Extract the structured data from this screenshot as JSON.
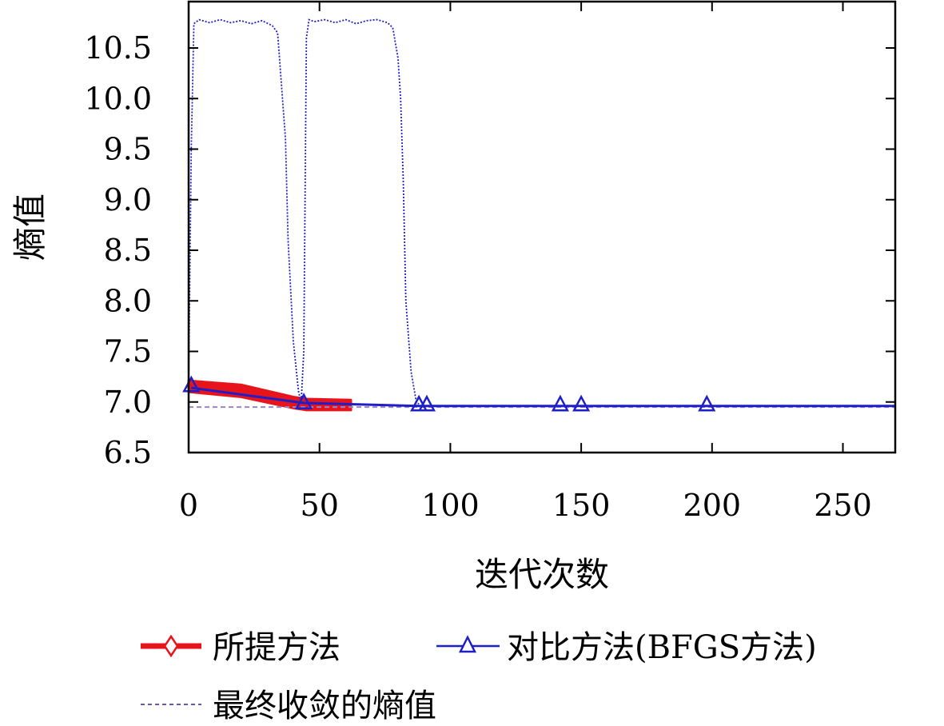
{
  "chart_data": {
    "type": "line",
    "xlabel": "迭代次数",
    "ylabel": "熵值",
    "xlim": [
      0,
      270
    ],
    "ylim": [
      6.5,
      10.85
    ],
    "x_ticks": [
      0,
      50,
      100,
      150,
      200,
      250
    ],
    "y_ticks": [
      6.5,
      7.0,
      7.5,
      8.0,
      8.5,
      9.0,
      9.5,
      10.0,
      10.5
    ],
    "y_tick_labels": [
      "6.5",
      "7.0",
      "7.5",
      "8.0",
      "8.5",
      "9.0",
      "9.5",
      "10.0",
      "10.5"
    ],
    "grid": false,
    "legend_position": "bottom",
    "series": [
      {
        "name": "所提方法",
        "color": "#e8141c",
        "marker": "diamond",
        "band_upper": [
          [
            0,
            7.21
          ],
          [
            20,
            7.17
          ],
          [
            40,
            7.05
          ],
          [
            45,
            7.03
          ],
          [
            62,
            7.02
          ]
        ],
        "band_lower": [
          [
            0,
            7.1
          ],
          [
            20,
            7.05
          ],
          [
            40,
            6.94
          ],
          [
            45,
            6.92
          ],
          [
            62,
            6.92
          ]
        ]
      },
      {
        "name": "对比方法(BFGS方法)",
        "color": "#1f1fc8",
        "marker": "triangle",
        "x": [
          1,
          44,
          88,
          91,
          142,
          150,
          198,
          270
        ],
        "y": [
          7.14,
          6.99,
          6.96,
          6.96,
          6.96,
          6.96,
          6.96,
          6.96
        ],
        "marker_x": [
          1,
          44,
          88,
          91,
          142,
          150,
          198
        ],
        "marker_y": [
          7.17,
          7.0,
          6.98,
          6.98,
          6.98,
          6.98,
          6.98
        ]
      },
      {
        "name": "最终收敛的熵值",
        "color": "#9a84c8",
        "dashed": true,
        "y": 6.95
      }
    ],
    "search_trace": {
      "color": "#1f1fc8",
      "x": [
        0,
        1,
        2,
        4,
        8,
        12,
        16,
        20,
        24,
        28,
        32,
        34,
        35,
        37,
        38,
        40,
        42,
        43,
        44,
        45,
        46,
        48,
        52,
        56,
        60,
        64,
        68,
        72,
        76,
        78,
        80,
        81,
        82,
        83,
        85,
        87,
        88
      ],
      "y": [
        7.2,
        9.5,
        10.74,
        10.78,
        10.75,
        10.78,
        10.75,
        10.77,
        10.74,
        10.77,
        10.72,
        10.65,
        10.3,
        9.6,
        8.6,
        7.6,
        7.1,
        7.0,
        7.5,
        10.6,
        10.78,
        10.76,
        10.78,
        10.75,
        10.78,
        10.74,
        10.77,
        10.78,
        10.75,
        10.7,
        10.4,
        10.0,
        9.2,
        8.0,
        7.3,
        7.0,
        6.98
      ]
    }
  }
}
